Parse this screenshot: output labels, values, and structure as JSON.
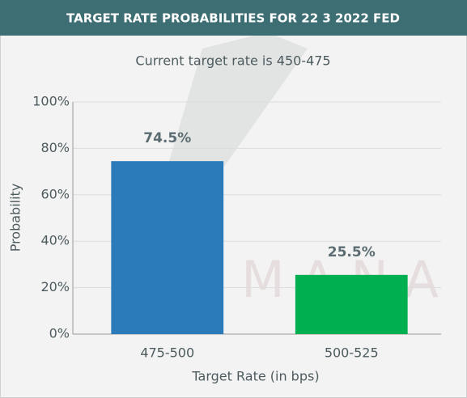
{
  "chart_data": {
    "type": "bar",
    "title": "TARGET RATE PROBABILITIES FOR 22 3 2022 FED",
    "subtitle": "Current target rate is 450-475",
    "watermark": "M A N A",
    "categories": [
      "475-500",
      "500-525"
    ],
    "values": [
      74.5,
      25.5
    ],
    "value_labels": [
      "74.5%",
      "25.5%"
    ],
    "colors": [
      "#2b7bba",
      "#00b050"
    ],
    "x_label": "Target Rate (in bps)",
    "y_label": "Probability",
    "ylim": [
      0,
      100
    ],
    "yticks": [
      {
        "value": 0,
        "label": "0%"
      },
      {
        "value": 20,
        "label": "20%"
      },
      {
        "value": 40,
        "label": "40%"
      },
      {
        "value": 60,
        "label": "60%"
      },
      {
        "value": 80,
        "label": "80%"
      },
      {
        "value": 100,
        "label": "100%"
      }
    ],
    "grid": true
  }
}
